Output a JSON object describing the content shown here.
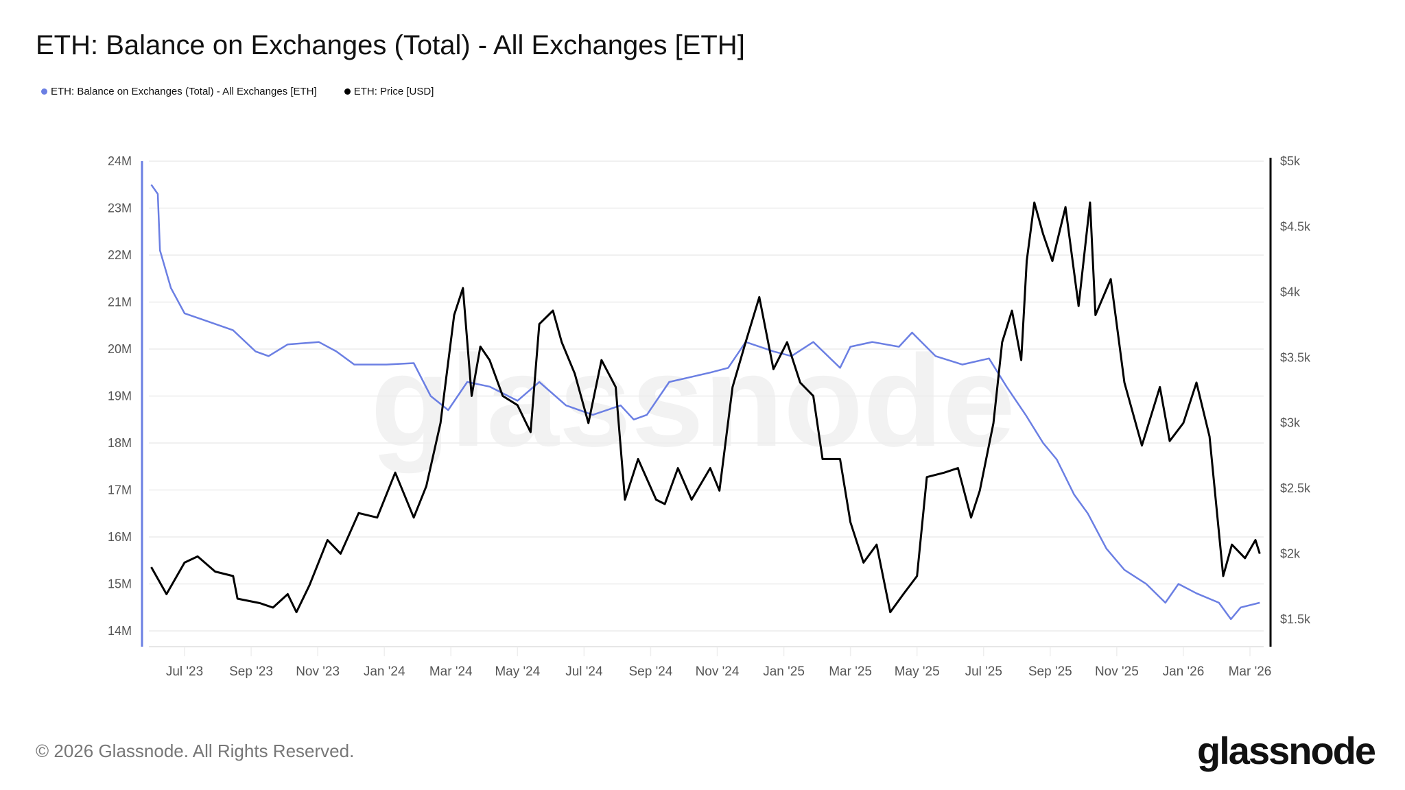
{
  "chart_data": {
    "type": "line",
    "title": "ETH: Balance on Exchanges (Total) - All Exchanges [ETH]",
    "legend_position": "top-left",
    "grid": true,
    "watermark": "glassnode",
    "x_ticks": [
      "Jul '23",
      "Sep '23",
      "Nov '23",
      "Jan '24",
      "Mar '24",
      "May '24",
      "Jul '24",
      "Sep '24",
      "Nov '24",
      "Jan '25",
      "Mar '25",
      "May '25",
      "Jul '25",
      "Sep '25",
      "Nov '25",
      "Jan '26",
      "Mar '26"
    ],
    "y_left": {
      "ticks": [
        "14M",
        "15M",
        "16M",
        "17M",
        "18M",
        "19M",
        "20M",
        "21M",
        "22M",
        "23M",
        "24M"
      ],
      "range": [
        14000000,
        24000000
      ]
    },
    "y_right": {
      "ticks": [
        "$1.5k",
        "$2k",
        "$2.5k",
        "$3k",
        "$3.5k",
        "$4k",
        "$4.5k",
        "$5k"
      ],
      "range": [
        1500,
        5000
      ]
    },
    "series": [
      {
        "name": "ETH: Balance on Exchanges (Total) - All Exchanges [ETH]",
        "axis": "left",
        "color": "#6b7fe3",
        "unit": "M ETH",
        "points": [
          [
            "2023-06-01",
            23.5
          ],
          [
            "2023-06-07",
            23.3
          ],
          [
            "2023-06-09",
            22.1
          ],
          [
            "2023-06-19",
            21.3
          ],
          [
            "2023-07-01",
            20.76
          ],
          [
            "2023-07-21",
            20.6
          ],
          [
            "2023-08-15",
            20.4
          ],
          [
            "2023-09-05",
            19.95
          ],
          [
            "2023-09-17",
            19.85
          ],
          [
            "2023-10-04",
            20.1
          ],
          [
            "2023-11-02",
            20.15
          ],
          [
            "2023-11-18",
            19.95
          ],
          [
            "2023-12-04",
            19.67
          ],
          [
            "2024-01-03",
            19.67
          ],
          [
            "2024-01-28",
            19.7
          ],
          [
            "2024-02-13",
            19.0
          ],
          [
            "2024-02-29",
            18.7
          ],
          [
            "2024-03-16",
            19.3
          ],
          [
            "2024-04-06",
            19.2
          ],
          [
            "2024-05-01",
            18.9
          ],
          [
            "2024-05-21",
            19.3
          ],
          [
            "2024-06-15",
            18.8
          ],
          [
            "2024-07-09",
            18.6
          ],
          [
            "2024-08-04",
            18.8
          ],
          [
            "2024-08-16",
            18.5
          ],
          [
            "2024-08-28",
            18.6
          ],
          [
            "2024-09-18",
            19.3
          ],
          [
            "2024-10-25",
            19.5
          ],
          [
            "2024-11-11",
            19.6
          ],
          [
            "2024-11-27",
            20.15
          ],
          [
            "2024-12-22",
            19.95
          ],
          [
            "2025-01-08",
            19.85
          ],
          [
            "2025-01-28",
            20.15
          ],
          [
            "2025-02-22",
            19.6
          ],
          [
            "2025-03-01",
            20.05
          ],
          [
            "2025-03-21",
            20.15
          ],
          [
            "2025-04-15",
            20.05
          ],
          [
            "2025-04-27",
            20.35
          ],
          [
            "2025-05-18",
            19.85
          ],
          [
            "2025-06-12",
            19.67
          ],
          [
            "2025-07-06",
            19.8
          ],
          [
            "2025-07-22",
            19.2
          ],
          [
            "2025-08-09",
            18.6
          ],
          [
            "2025-08-25",
            18.0
          ],
          [
            "2025-09-07",
            17.65
          ],
          [
            "2025-09-23",
            16.9
          ],
          [
            "2025-10-05",
            16.5
          ],
          [
            "2025-10-22",
            15.75
          ],
          [
            "2025-11-08",
            15.3
          ],
          [
            "2025-11-28",
            15.0
          ],
          [
            "2025-12-15",
            14.6
          ],
          [
            "2025-12-27",
            15.0
          ],
          [
            "2026-01-13",
            14.8
          ],
          [
            "2026-02-03",
            14.6
          ],
          [
            "2026-02-14",
            14.25
          ],
          [
            "2026-02-23",
            14.5
          ],
          [
            "2026-03-10",
            14.6
          ]
        ]
      },
      {
        "name": "ETH: Price [USD]",
        "axis": "right",
        "color": "#000000",
        "unit": "USD",
        "points": [
          [
            "2023-06-01",
            1898
          ],
          [
            "2023-06-15",
            1692
          ],
          [
            "2023-07-01",
            1933
          ],
          [
            "2023-07-13",
            1980
          ],
          [
            "2023-07-29",
            1864
          ],
          [
            "2023-08-15",
            1830
          ],
          [
            "2023-08-19",
            1657
          ],
          [
            "2023-09-09",
            1623
          ],
          [
            "2023-09-21",
            1589
          ],
          [
            "2023-10-04",
            1692
          ],
          [
            "2023-10-12",
            1554
          ],
          [
            "2023-10-24",
            1761
          ],
          [
            "2023-11-10",
            2105
          ],
          [
            "2023-11-22",
            2001
          ],
          [
            "2023-12-08",
            2311
          ],
          [
            "2023-12-25",
            2277
          ],
          [
            "2024-01-11",
            2620
          ],
          [
            "2024-01-28",
            2277
          ],
          [
            "2024-02-09",
            2517
          ],
          [
            "2024-02-22",
            2999
          ],
          [
            "2024-03-04",
            3824
          ],
          [
            "2024-03-12",
            4030
          ],
          [
            "2024-03-20",
            3206
          ],
          [
            "2024-03-28",
            3583
          ],
          [
            "2024-04-06",
            3480
          ],
          [
            "2024-04-18",
            3206
          ],
          [
            "2024-05-01",
            3136
          ],
          [
            "2024-05-13",
            2930
          ],
          [
            "2024-05-21",
            3755
          ],
          [
            "2024-06-03",
            3858
          ],
          [
            "2024-06-11",
            3617
          ],
          [
            "2024-06-23",
            3377
          ],
          [
            "2024-07-05",
            2999
          ],
          [
            "2024-07-17",
            3480
          ],
          [
            "2024-07-30",
            3274
          ],
          [
            "2024-08-08",
            2414
          ],
          [
            "2024-08-20",
            2724
          ],
          [
            "2024-09-06",
            2414
          ],
          [
            "2024-09-14",
            2380
          ],
          [
            "2024-09-26",
            2655
          ],
          [
            "2024-10-08",
            2414
          ],
          [
            "2024-10-25",
            2655
          ],
          [
            "2024-11-03",
            2483
          ],
          [
            "2024-11-15",
            3274
          ],
          [
            "2024-11-27",
            3617
          ],
          [
            "2024-12-09",
            3961
          ],
          [
            "2024-12-22",
            3411
          ],
          [
            "2025-01-04",
            3617
          ],
          [
            "2025-01-16",
            3308
          ],
          [
            "2025-01-28",
            3206
          ],
          [
            "2025-02-06",
            2724
          ],
          [
            "2025-02-22",
            2724
          ],
          [
            "2025-03-01",
            2242
          ],
          [
            "2025-03-13",
            1933
          ],
          [
            "2025-03-25",
            2070
          ],
          [
            "2025-04-07",
            1554
          ],
          [
            "2025-04-19",
            1692
          ],
          [
            "2025-05-01",
            1830
          ],
          [
            "2025-05-10",
            2586
          ],
          [
            "2025-05-26",
            2620
          ],
          [
            "2025-06-08",
            2655
          ],
          [
            "2025-06-20",
            2277
          ],
          [
            "2025-06-28",
            2483
          ],
          [
            "2025-07-10",
            2999
          ],
          [
            "2025-07-18",
            3617
          ],
          [
            "2025-07-27",
            3858
          ],
          [
            "2025-08-05",
            3480
          ],
          [
            "2025-08-10",
            4237
          ],
          [
            "2025-08-17",
            4684
          ],
          [
            "2025-08-25",
            4443
          ],
          [
            "2025-09-03",
            4237
          ],
          [
            "2025-09-15",
            4649
          ],
          [
            "2025-09-27",
            3893
          ],
          [
            "2025-10-07",
            4684
          ],
          [
            "2025-10-12",
            3824
          ],
          [
            "2025-10-26",
            4099
          ],
          [
            "2025-11-08",
            3308
          ],
          [
            "2025-11-24",
            2827
          ],
          [
            "2025-12-10",
            3274
          ],
          [
            "2025-12-19",
            2862
          ],
          [
            "2026-01-01",
            2999
          ],
          [
            "2026-01-13",
            3308
          ],
          [
            "2026-01-25",
            2896
          ],
          [
            "2026-02-07",
            1830
          ],
          [
            "2026-02-15",
            2070
          ],
          [
            "2026-02-27",
            1967
          ],
          [
            "2026-03-06",
            2105
          ],
          [
            "2026-03-10",
            2001
          ]
        ]
      }
    ]
  },
  "footer": {
    "copyright": "© 2026 Glassnode. All Rights Reserved.",
    "logo": "glassnode"
  }
}
